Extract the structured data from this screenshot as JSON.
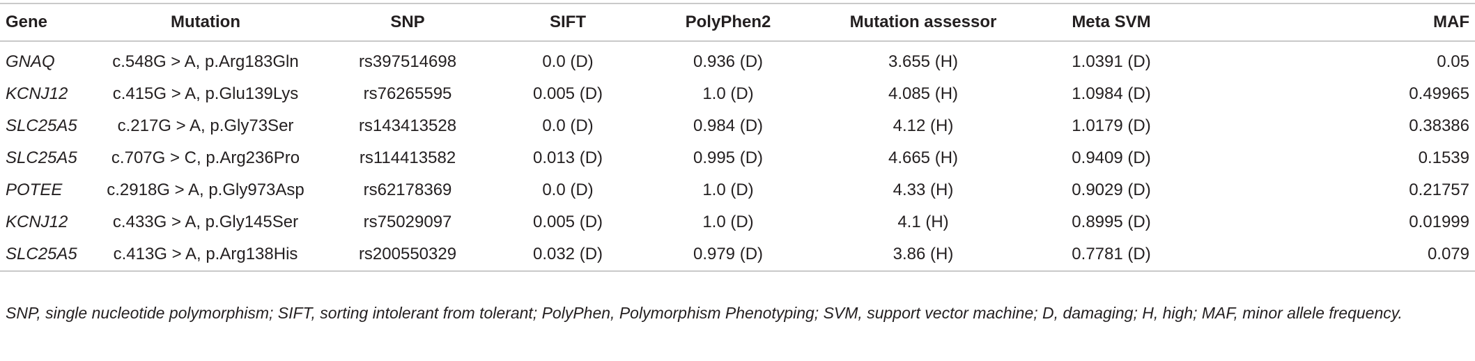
{
  "table": {
    "headers": [
      "Gene",
      "Mutation",
      "SNP",
      "SIFT",
      "PolyPhen2",
      "Mutation assessor",
      "Meta SVM",
      "MAF"
    ],
    "rows": [
      [
        "GNAQ",
        "c.548G > A, p.Arg183Gln",
        "rs397514698",
        "0.0 (D)",
        "0.936 (D)",
        "3.655 (H)",
        "1.0391 (D)",
        "0.05"
      ],
      [
        "KCNJ12",
        "c.415G > A, p.Glu139Lys",
        "rs76265595",
        "0.005 (D)",
        "1.0 (D)",
        "4.085 (H)",
        "1.0984 (D)",
        "0.49965"
      ],
      [
        "SLC25A5",
        "c.217G > A, p.Gly73Ser",
        "rs143413528",
        "0.0 (D)",
        "0.984 (D)",
        "4.12 (H)",
        "1.0179 (D)",
        "0.38386"
      ],
      [
        "SLC25A5",
        "c.707G > C, p.Arg236Pro",
        "rs114413582",
        "0.013 (D)",
        "0.995 (D)",
        "4.665 (H)",
        "0.9409 (D)",
        "0.1539"
      ],
      [
        "POTEE",
        "c.2918G > A, p.Gly973Asp",
        "rs62178369",
        "0.0 (D)",
        "1.0 (D)",
        "4.33 (H)",
        "0.9029 (D)",
        "0.21757"
      ],
      [
        "KCNJ12",
        "c.433G > A, p.Gly145Ser",
        "rs75029097",
        "0.005 (D)",
        "1.0 (D)",
        "4.1 (H)",
        "0.8995 (D)",
        "0.01999"
      ],
      [
        "SLC25A5",
        "c.413G > A, p.Arg138His",
        "rs200550329",
        "0.032 (D)",
        "0.979 (D)",
        "3.86 (H)",
        "0.7781 (D)",
        "0.079"
      ]
    ]
  },
  "footnote": "SNP, single nucleotide polymorphism; SIFT, sorting intolerant from tolerant; PolyPhen, Polymorphism Phenotyping; SVM, support vector machine; D, damaging; H, high; MAF, minor allele frequency."
}
